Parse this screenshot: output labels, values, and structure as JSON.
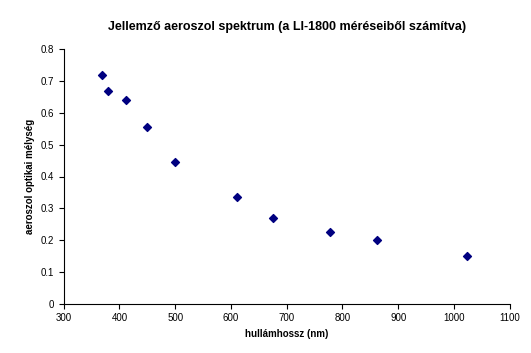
{
  "chart_data": {
    "type": "scatter",
    "title": "Jellemző aeroszol spektrum (a LI-1800 méréseiből számítva)",
    "x_label": "hullámhossz (nm)",
    "y_label": "aeroszol optikai mélység",
    "x": [
      368,
      380,
      412,
      450,
      500,
      610,
      675,
      778,
      862,
      1024
    ],
    "values": [
      0.72,
      0.67,
      0.64,
      0.555,
      0.445,
      0.335,
      0.27,
      0.225,
      0.2,
      0.15
    ],
    "color": "#000080",
    "marker": "diamond",
    "xlim": [
      300,
      1100
    ],
    "xticks": [
      300,
      400,
      500,
      600,
      700,
      800,
      900,
      1000,
      1100
    ],
    "ylim": [
      0,
      0.8
    ],
    "yticks": [
      0,
      0.1,
      0.2,
      0.3,
      0.4,
      0.5,
      0.6,
      0.7,
      0.8
    ],
    "grid": false
  }
}
